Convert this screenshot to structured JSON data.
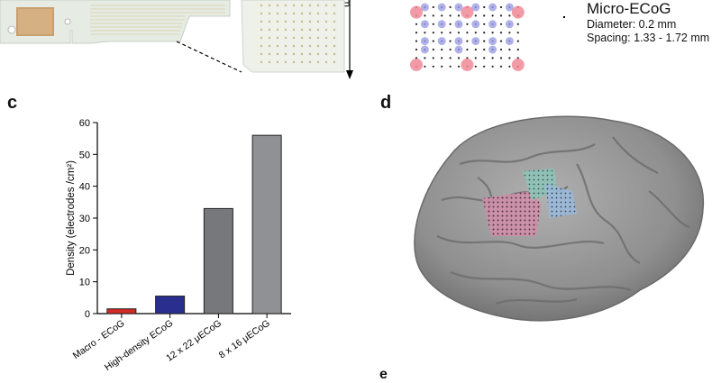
{
  "panels": {
    "c": "c",
    "d": "d",
    "e": "e"
  },
  "legend": {
    "title": "Micro-ECoG",
    "diameter": "Diameter: 0.2 mm",
    "spacing": "Spacing: 1.33 - 1.72 mm"
  },
  "top_scale_fragment": "m",
  "colors": {
    "macro": "#d42a25",
    "high_density": "#2a2f8f",
    "gray_dark": "#77787b",
    "gray_light": "#909194",
    "grid_pink": "#f08a96",
    "grid_blue": "#9c9ee3",
    "brain": "#9a9a9a"
  },
  "chart_data": {
    "type": "bar",
    "categories": [
      "Macro - ECoG",
      "High-density ECoG",
      "12 x 22 μECoG",
      "8 x 16 μECoG"
    ],
    "values": [
      1.5,
      5.5,
      33,
      56
    ],
    "ylabel": "Density (electrodes /cm²)",
    "ylim": [
      0,
      60
    ],
    "yticks": [
      0,
      10,
      20,
      30,
      40,
      50,
      60
    ],
    "grid": false,
    "legend": "none"
  }
}
